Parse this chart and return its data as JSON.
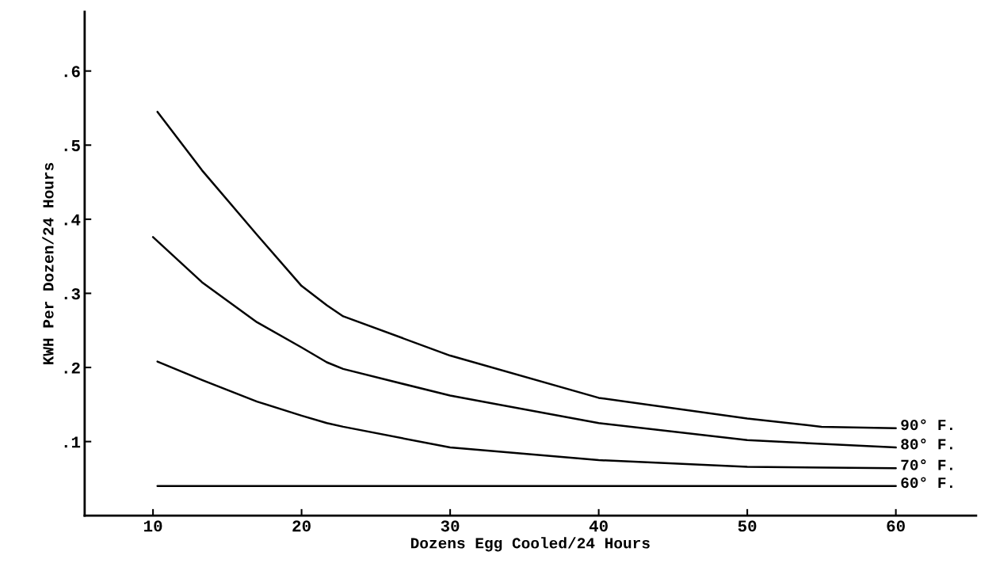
{
  "chart_data": {
    "type": "line",
    "xlabel": "Dozens Egg Cooled/24 Hours",
    "ylabel": "KWH Per Dozen/24 Hours",
    "xlim": [
      5.4,
      65.4
    ],
    "xticks": [
      10,
      20,
      30,
      40,
      50,
      60
    ],
    "ylim": [
      0,
      0.68
    ],
    "yticks": [
      {
        "value": 0.1,
        "label": ".1"
      },
      {
        "value": 0.2,
        "label": ".2"
      },
      {
        "value": 0.3,
        "label": ".3"
      },
      {
        "value": 0.4,
        "label": ".4"
      },
      {
        "value": 0.5,
        "label": ".5"
      },
      {
        "value": 0.6,
        "label": ".6"
      }
    ],
    "grid": false,
    "legend": false,
    "marker": "none",
    "line_style": "solid",
    "series": [
      {
        "name": "90° F.",
        "color": "#000000",
        "x": [
          10.3,
          13.3,
          17,
          20,
          21.7,
          22.8,
          30,
          40,
          50,
          55,
          60
        ],
        "values": [
          0.545,
          0.466,
          0.379,
          0.31,
          0.284,
          0.269,
          0.216,
          0.159,
          0.131,
          0.12,
          0.118
        ]
      },
      {
        "name": "80° F.",
        "color": "#000000",
        "x": [
          10,
          13.3,
          17,
          20,
          21.7,
          22.8,
          30,
          40,
          50,
          60
        ],
        "values": [
          0.376,
          0.315,
          0.261,
          0.227,
          0.207,
          0.198,
          0.162,
          0.125,
          0.102,
          0.092
        ]
      },
      {
        "name": "70° F.",
        "color": "#000000",
        "x": [
          10.3,
          13.3,
          17,
          20,
          21.7,
          22.8,
          30,
          40,
          50,
          60
        ],
        "values": [
          0.208,
          0.183,
          0.154,
          0.135,
          0.125,
          0.12,
          0.092,
          0.075,
          0.066,
          0.064
        ]
      },
      {
        "name": "60° F.",
        "color": "#000000",
        "x": [
          10.3,
          60
        ],
        "values": [
          0.04,
          0.04
        ]
      }
    ]
  }
}
